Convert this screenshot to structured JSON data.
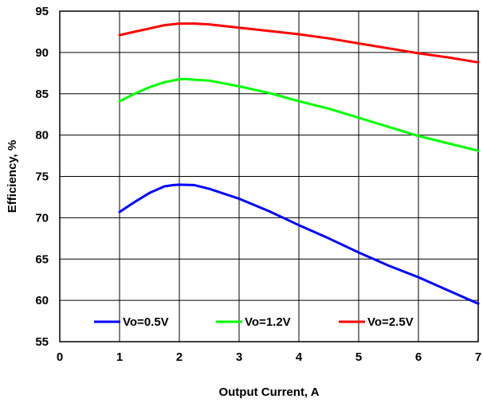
{
  "chart_data": {
    "type": "line",
    "title": "",
    "xlabel": "Output Current, A",
    "ylabel": "Efficiency, %",
    "xlim": [
      0,
      7
    ],
    "ylim": [
      55,
      95
    ],
    "xticks": [
      "0",
      "1",
      "2",
      "3",
      "4",
      "5",
      "6",
      "7"
    ],
    "yticks": [
      "55",
      "60",
      "65",
      "70",
      "75",
      "80",
      "85",
      "90",
      "95"
    ],
    "grid": true,
    "legend_position": "bottom-inside",
    "series": [
      {
        "name": "Vo=0.5V",
        "color": "#0000ff",
        "x": [
          1.0,
          1.25,
          1.5,
          1.75,
          1.9,
          2.0,
          2.25,
          2.5,
          3.0,
          3.5,
          4.0,
          4.5,
          5.0,
          5.5,
          6.0,
          6.5,
          7.0
        ],
        "y": [
          70.7,
          71.9,
          73.0,
          73.8,
          73.95,
          74.0,
          73.95,
          73.5,
          72.3,
          70.8,
          69.1,
          67.5,
          65.8,
          64.2,
          62.8,
          61.2,
          59.6
        ]
      },
      {
        "name": "Vo=1.2V",
        "color": "#00ff00",
        "x": [
          1.0,
          1.25,
          1.5,
          1.75,
          2.0,
          2.1,
          2.25,
          2.5,
          3.0,
          3.5,
          4.0,
          4.5,
          5.0,
          5.5,
          6.0,
          6.5,
          7.0
        ],
        "y": [
          84.1,
          85.0,
          85.8,
          86.4,
          86.75,
          86.8,
          86.7,
          86.6,
          85.9,
          85.1,
          84.1,
          83.2,
          82.1,
          81.0,
          79.9,
          79.0,
          78.1
        ]
      },
      {
        "name": "Vo=2.5V",
        "color": "#ff0000",
        "x": [
          1.0,
          1.25,
          1.5,
          1.75,
          2.0,
          2.25,
          2.5,
          3.0,
          3.5,
          4.0,
          4.5,
          5.0,
          5.5,
          6.0,
          6.5,
          7.0
        ],
        "y": [
          92.1,
          92.5,
          92.9,
          93.3,
          93.5,
          93.5,
          93.4,
          93.0,
          92.6,
          92.2,
          91.7,
          91.1,
          90.5,
          89.9,
          89.4,
          88.8
        ]
      }
    ]
  }
}
